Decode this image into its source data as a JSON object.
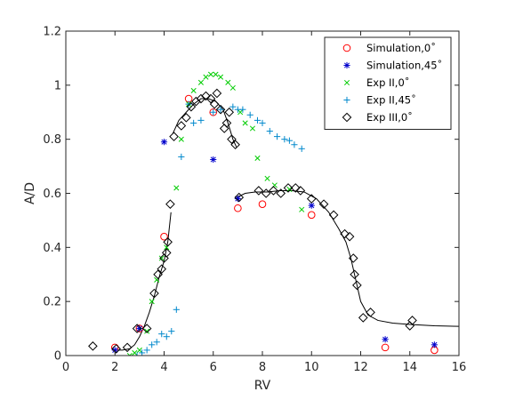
{
  "chart_data": {
    "type": "scatter",
    "title": "",
    "xlabel": "RV",
    "ylabel": "A/D",
    "xlim": [
      0,
      16
    ],
    "ylim": [
      0,
      1.2
    ],
    "xticks": [
      0,
      2,
      4,
      6,
      8,
      10,
      12,
      14,
      16
    ],
    "yticks": [
      0,
      0.2,
      0.4,
      0.6,
      0.8,
      1,
      1.2
    ],
    "xtick_labels": [
      "0",
      "2",
      "4",
      "6",
      "8",
      "10",
      "12",
      "14",
      "16"
    ],
    "ytick_labels": [
      "0",
      "0.2",
      "0.4",
      "0.6",
      "0.8",
      "1",
      "1.2"
    ],
    "grid": false,
    "legend_position": "top-right",
    "series": [
      {
        "name": "Simulation,0˚",
        "marker": "circle",
        "color": "#ff0000",
        "points": [
          [
            2,
            0.03
          ],
          [
            3,
            0.1
          ],
          [
            4,
            0.44
          ],
          [
            5,
            0.95
          ],
          [
            6,
            0.9
          ],
          [
            7,
            0.545
          ],
          [
            8,
            0.56
          ],
          [
            10,
            0.52
          ],
          [
            13,
            0.03
          ],
          [
            15,
            0.02
          ]
        ]
      },
      {
        "name": "Simulation,45˚",
        "marker": "asterisk",
        "color": "#0000cc",
        "points": [
          [
            2,
            0.02
          ],
          [
            3,
            0.1
          ],
          [
            4,
            0.79
          ],
          [
            6,
            0.725
          ],
          [
            7,
            0.58
          ],
          [
            10,
            0.555
          ],
          [
            13,
            0.06
          ],
          [
            15,
            0.04
          ]
        ]
      },
      {
        "name": "Exp II,0˚",
        "marker": "x",
        "color": "#00cc00",
        "points": [
          [
            2.6,
            0.0
          ],
          [
            2.8,
            0.01
          ],
          [
            3.0,
            0.02
          ],
          [
            3.3,
            0.09
          ],
          [
            3.5,
            0.2
          ],
          [
            3.7,
            0.28
          ],
          [
            3.9,
            0.36
          ],
          [
            4.1,
            0.4
          ],
          [
            4.5,
            0.62
          ],
          [
            4.7,
            0.8
          ],
          [
            5.0,
            0.93
          ],
          [
            5.2,
            0.98
          ],
          [
            5.5,
            1.01
          ],
          [
            5.7,
            1.03
          ],
          [
            5.9,
            1.04
          ],
          [
            6.1,
            1.04
          ],
          [
            6.3,
            1.03
          ],
          [
            6.6,
            1.01
          ],
          [
            6.8,
            0.99
          ],
          [
            7.1,
            0.9
          ],
          [
            7.3,
            0.86
          ],
          [
            7.6,
            0.84
          ],
          [
            7.8,
            0.73
          ],
          [
            8.2,
            0.655
          ],
          [
            8.5,
            0.63
          ],
          [
            9.1,
            0.615
          ],
          [
            9.6,
            0.54
          ]
        ]
      },
      {
        "name": "Exp II,45˚",
        "marker": "plus",
        "color": "#0088cc",
        "points": [
          [
            2.9,
            0.0
          ],
          [
            3.1,
            0.01
          ],
          [
            3.3,
            0.02
          ],
          [
            3.5,
            0.04
          ],
          [
            3.7,
            0.05
          ],
          [
            3.9,
            0.08
          ],
          [
            4.1,
            0.07
          ],
          [
            4.3,
            0.09
          ],
          [
            4.5,
            0.17
          ],
          [
            4.7,
            0.735
          ],
          [
            5.0,
            0.93
          ],
          [
            5.2,
            0.86
          ],
          [
            5.5,
            0.87
          ],
          [
            6.0,
            0.9
          ],
          [
            6.3,
            0.91
          ],
          [
            6.8,
            0.92
          ],
          [
            7.0,
            0.91
          ],
          [
            7.2,
            0.91
          ],
          [
            7.5,
            0.89
          ],
          [
            7.8,
            0.87
          ],
          [
            8.0,
            0.86
          ],
          [
            8.3,
            0.83
          ],
          [
            8.6,
            0.81
          ],
          [
            8.9,
            0.8
          ],
          [
            9.1,
            0.795
          ],
          [
            9.3,
            0.78
          ],
          [
            9.6,
            0.765
          ]
        ]
      },
      {
        "name": "Exp III,0˚",
        "marker": "diamond",
        "color": "#000000",
        "points": [
          [
            1.1,
            0.035
          ],
          [
            2.05,
            0.025
          ],
          [
            2.5,
            0.03
          ],
          [
            2.9,
            0.1
          ],
          [
            3.3,
            0.1
          ],
          [
            3.6,
            0.23
          ],
          [
            3.75,
            0.3
          ],
          [
            3.9,
            0.32
          ],
          [
            4.0,
            0.36
          ],
          [
            4.1,
            0.38
          ],
          [
            4.15,
            0.42
          ],
          [
            4.25,
            0.56
          ],
          [
            4.4,
            0.81
          ],
          [
            4.7,
            0.85
          ],
          [
            4.9,
            0.88
          ],
          [
            5.1,
            0.92
          ],
          [
            5.3,
            0.94
          ],
          [
            5.5,
            0.95
          ],
          [
            5.7,
            0.96
          ],
          [
            5.9,
            0.95
          ],
          [
            6.05,
            0.93
          ],
          [
            6.15,
            0.97
          ],
          [
            6.3,
            0.91
          ],
          [
            6.45,
            0.84
          ],
          [
            6.55,
            0.86
          ],
          [
            6.65,
            0.9
          ],
          [
            6.75,
            0.8
          ],
          [
            6.9,
            0.78
          ],
          [
            7.05,
            0.585
          ],
          [
            7.85,
            0.61
          ],
          [
            8.15,
            0.6
          ],
          [
            8.45,
            0.61
          ],
          [
            8.75,
            0.6
          ],
          [
            9.05,
            0.62
          ],
          [
            9.35,
            0.62
          ],
          [
            9.55,
            0.61
          ],
          [
            10.0,
            0.58
          ],
          [
            10.5,
            0.56
          ],
          [
            10.9,
            0.52
          ],
          [
            11.35,
            0.45
          ],
          [
            11.55,
            0.44
          ],
          [
            11.7,
            0.36
          ],
          [
            11.75,
            0.3
          ],
          [
            11.85,
            0.26
          ],
          [
            12.1,
            0.14
          ],
          [
            12.4,
            0.16
          ],
          [
            14.0,
            0.11
          ],
          [
            14.1,
            0.13
          ]
        ]
      }
    ],
    "fit_curves": [
      {
        "color": "#000000",
        "points": [
          [
            1.95,
            0.02
          ],
          [
            2.3,
            0.02
          ],
          [
            2.6,
            0.025
          ],
          [
            2.8,
            0.04
          ],
          [
            3.0,
            0.07
          ],
          [
            3.2,
            0.11
          ],
          [
            3.4,
            0.16
          ],
          [
            3.6,
            0.22
          ],
          [
            3.8,
            0.29
          ],
          [
            4.0,
            0.35
          ],
          [
            4.15,
            0.42
          ],
          [
            4.28,
            0.53
          ]
        ]
      },
      {
        "color": "#000000",
        "points": [
          [
            4.35,
            0.82
          ],
          [
            4.6,
            0.87
          ],
          [
            4.9,
            0.9
          ],
          [
            5.2,
            0.93
          ],
          [
            5.5,
            0.95
          ],
          [
            5.8,
            0.95
          ],
          [
            6.1,
            0.94
          ],
          [
            6.4,
            0.91
          ],
          [
            6.6,
            0.86
          ],
          [
            6.8,
            0.8
          ],
          [
            6.95,
            0.77
          ]
        ]
      },
      {
        "color": "#000000",
        "points": [
          [
            6.95,
            0.585
          ],
          [
            7.3,
            0.6
          ],
          [
            7.7,
            0.605
          ],
          [
            8.2,
            0.605
          ],
          [
            8.7,
            0.61
          ],
          [
            9.2,
            0.61
          ],
          [
            9.7,
            0.605
          ],
          [
            10.2,
            0.58
          ],
          [
            10.7,
            0.53
          ],
          [
            11.1,
            0.47
          ],
          [
            11.4,
            0.42
          ],
          [
            11.6,
            0.36
          ],
          [
            11.8,
            0.28
          ],
          [
            12.0,
            0.2
          ],
          [
            12.3,
            0.15
          ],
          [
            12.7,
            0.13
          ],
          [
            13.3,
            0.12
          ],
          [
            14.0,
            0.115
          ],
          [
            15.0,
            0.11
          ],
          [
            16.0,
            0.108
          ]
        ]
      }
    ]
  }
}
